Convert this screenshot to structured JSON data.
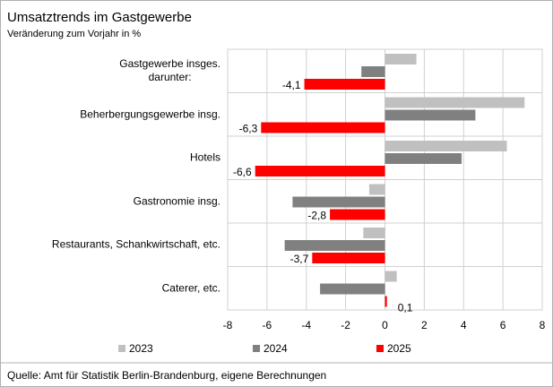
{
  "chart_data": {
    "type": "bar",
    "orientation": "horizontal",
    "title": "Umsatztrends  im Gastgewerbe",
    "subtitle": "Veränderung zum Vorjahr in %",
    "source": "Quelle:  Amt für Statistik Berlin-Brandenburg,  eigene Berechnungen",
    "categories": [
      "Gastgewerbe insges.\ndarunter:",
      "Beherbergungsgewerbe insg.",
      "Hotels",
      "Gastronomie insg.",
      "Restaurants, Schankwirtschaft, etc.",
      "Caterer, etc."
    ],
    "series": [
      {
        "name": "2023",
        "color": "#c0c0c0",
        "values": [
          1.6,
          7.1,
          6.2,
          -0.8,
          -1.1,
          0.6
        ]
      },
      {
        "name": "2024",
        "color": "#808080",
        "values": [
          -1.2,
          4.6,
          3.9,
          -4.7,
          -5.1,
          -3.3
        ]
      },
      {
        "name": "2025",
        "color": "#ff0000",
        "values": [
          -4.1,
          -6.3,
          -6.6,
          -2.8,
          -3.7,
          0.1
        ],
        "value_labels": [
          "-4,1",
          "-6,3",
          "-6,6",
          "-2,8",
          "-3,7",
          "0,1"
        ]
      }
    ],
    "xlim": [
      -8,
      8
    ],
    "xticks": [
      -8,
      -6,
      -4,
      -2,
      0,
      2,
      4,
      6,
      8
    ],
    "grid": true
  }
}
